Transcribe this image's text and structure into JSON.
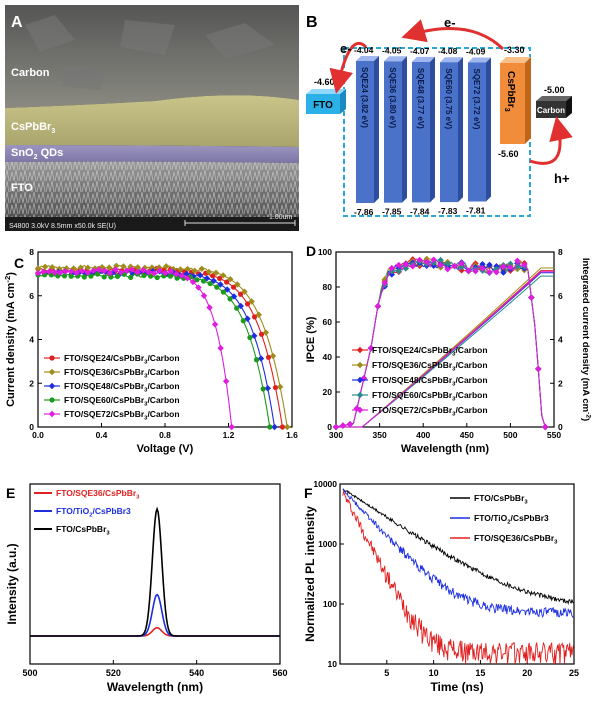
{
  "panelA": {
    "letter": "A",
    "layers": [
      "Carbon",
      "CsPbBr3",
      "SnO2 QDs",
      "FTO"
    ],
    "layer_text": {
      "csp_main": "CsPbBr",
      "csp_sub": "3",
      "sno_main": "SnO",
      "sno_sub": "2",
      "sno_tail": " QDs"
    },
    "scale_text": "S4800 3.0kV 8.5mm x50.0k SE(U)",
    "scale_bar": "1.00um"
  },
  "panelB": {
    "letter": "B",
    "fto": {
      "label": "FTO",
      "level": "-4.60"
    },
    "sqes": [
      {
        "label": "SQE24 (3.82 eV)",
        "top": "-4.04",
        "bottom": "-7.86"
      },
      {
        "label": "SQE36 (3.80 eV)",
        "top": "-4.05",
        "bottom": "-7.85"
      },
      {
        "label": "SQE48 (3.77 eV)",
        "top": "-4.07",
        "bottom": "-7.84"
      },
      {
        "label": "SQE60 (3.75 eV)",
        "top": "-4.08",
        "bottom": "-7.83"
      },
      {
        "label": "SQE72 (3.72 eV)",
        "top": "-4.09",
        "bottom": "-7.81"
      }
    ],
    "cspbbr3": {
      "label": "CsPbBr3",
      "main": "CsPbBr",
      "sub": "3",
      "top": "-3.30",
      "bottom": "-5.60"
    },
    "carbon": {
      "label": "Carbon",
      "level": "-5.00"
    },
    "electron1": "e-",
    "electron2": "e-",
    "hole": "h+",
    "colors": {
      "fto": "#2bb0e8",
      "sqe": "#4a72c8",
      "csp": "#f08c3a",
      "carbon": "#333333",
      "dash": "#2aa8d8",
      "arrow": "#e03030"
    }
  },
  "chart_data": [
    {
      "panel": "C",
      "type": "line",
      "xlabel": "Voltage (V)",
      "ylabel": "Current density (mA cm-2)",
      "xlim": [
        0.0,
        1.6
      ],
      "ylim": [
        0,
        8
      ],
      "xticks": [
        "0.0",
        "0.4",
        "0.8",
        "1.2",
        "1.6"
      ],
      "yticks": [
        "0",
        "2",
        "4",
        "6",
        "8"
      ],
      "legend_location": "bottom-left",
      "series": [
        {
          "name": "FTO/SQE24/CsPbBr3/Carbon",
          "color": "#e02020",
          "jsc": 7.16,
          "voc": 1.54,
          "n": 10.0
        },
        {
          "name": "FTO/SQE36/CsPbBr3/Carbon",
          "color": "#a08c1c",
          "jsc": 7.3,
          "voc": 1.57,
          "n": 10.0
        },
        {
          "name": "FTO/SQE48/CsPbBr3/Carbon",
          "color": "#1c2ee0",
          "jsc": 7.04,
          "voc": 1.49,
          "n": 10.0
        },
        {
          "name": "FTO/SQE60/CsPbBr3/Carbon",
          "color": "#1c9a1c",
          "jsc": 6.91,
          "voc": 1.46,
          "n": 10.0
        },
        {
          "name": "FTO/SQE72/CsPbBr3/Carbon",
          "color": "#e01ce0",
          "jsc": 7.12,
          "voc": 1.22,
          "n": 12.0
        }
      ]
    },
    {
      "panel": "D",
      "type": "line",
      "xlabel": "Wavelength (nm)",
      "ylabel": "IPCE (%)",
      "y2label": "Integrated current density (mA cm-2)",
      "xlim": [
        300,
        550
      ],
      "ylim": [
        0,
        100
      ],
      "y2lim": [
        0,
        8
      ],
      "xticks": [
        "300",
        "350",
        "400",
        "450",
        "500",
        "550"
      ],
      "yticks": [
        "0",
        "20",
        "40",
        "60",
        "80",
        "100"
      ],
      "y2ticks": [
        "0",
        "2",
        "4",
        "6",
        "8"
      ],
      "legend_location": "bottom-center",
      "series": [
        {
          "name": "FTO/SQE24/CsPbBr3/Carbon",
          "color": "#e02020",
          "integrated_end": 7.15
        },
        {
          "name": "FTO/SQE36/CsPbBr3/Carbon",
          "color": "#a08c1c",
          "integrated_end": 7.27
        },
        {
          "name": "FTO/SQE48/CsPbBr3/Carbon",
          "color": "#1c2ee0",
          "integrated_end": 7.05
        },
        {
          "name": "FTO/SQE60/CsPbBr3/Carbon",
          "color": "#2a8a8a",
          "integrated_end": 6.9
        },
        {
          "name": "FTO/SQE72/CsPbBr3/Carbon",
          "color": "#e01ce0",
          "integrated_end": 7.1
        }
      ],
      "ipce_shape": {
        "x": [
          300,
          320,
          340,
          350,
          360,
          380,
          400,
          420,
          440,
          460,
          480,
          500,
          510,
          520,
          530,
          535,
          540
        ],
        "y": [
          0,
          2,
          45,
          75,
          88,
          93,
          94,
          93,
          92,
          91,
          90,
          91,
          93,
          90,
          50,
          8,
          0
        ]
      }
    },
    {
      "panel": "E",
      "type": "line",
      "xlabel": "Wavelength (nm)",
      "ylabel": "Intensity (a.u.)",
      "xlim": [
        500,
        560
      ],
      "xticks": [
        "500",
        "520",
        "540",
        "560"
      ],
      "legend_location": "top-left",
      "series": [
        {
          "name": "FTO/SQE36/CsPbBr3",
          "color": "#e02020",
          "peak": 0.06
        },
        {
          "name": "FTO/TiO2/CsPbBr3",
          "color": "#1c2ee0",
          "peak": 0.3
        },
        {
          "name": "FTO/CsPbBr3",
          "color": "#000000",
          "peak": 0.92
        }
      ],
      "peak_center": 530.5
    },
    {
      "panel": "F",
      "type": "line",
      "xlabel": "Time (ns)",
      "ylabel": "Normalized PL intensity",
      "xlim": [
        0,
        25
      ],
      "ylim": [
        10,
        10000
      ],
      "yscale": "log",
      "xticks": [
        "5",
        "10",
        "15",
        "20",
        "25"
      ],
      "yticks": [
        "10",
        "100",
        "1000",
        "10000"
      ],
      "legend_location": "top-right",
      "series": [
        {
          "name": "FTO/CsPbBr3",
          "color": "#000000",
          "floor": 85,
          "tau": 4.2,
          "noise": 0.03
        },
        {
          "name": "FTO/TiO2/CsPbBr3",
          "color": "#1c2ee0",
          "floor": 72,
          "tau": 2.6,
          "noise": 0.06
        },
        {
          "name": "FTO/SQE36/CsPbBr3",
          "color": "#e02020",
          "floor": 16,
          "tau": 1.45,
          "noise": 0.14
        }
      ]
    }
  ],
  "legend_parts": {
    "C": [
      {
        "a": "FTO/SQE24/CsPbBr",
        "s": "3",
        "b": "/Carbon"
      },
      {
        "a": "FTO/SQE36/CsPbBr",
        "s": "3",
        "b": "/Carbon"
      },
      {
        "a": "FTO/SQE48/CsPbBr",
        "s": "3",
        "b": "/Carbon"
      },
      {
        "a": "FTO/SQE60/CsPbBr",
        "s": "3",
        "b": "/Carbon"
      },
      {
        "a": "FTO/SQE72/CsPbBr",
        "s": "3",
        "b": "/Carbon"
      }
    ],
    "D": [
      {
        "a": "FTO/SQE24/CsPbBr",
        "s": "3",
        "b": "/Carbon"
      },
      {
        "a": "FTO/SQE36/CsPbBr",
        "s": "3",
        "b": "/Carbon"
      },
      {
        "a": "FTO/SQE48/CsPbBr",
        "s": "3",
        "b": "/Carbon"
      },
      {
        "a": "FTO/SQE60/CsPbBr",
        "s": "3",
        "b": "/Carbon"
      },
      {
        "a": "FTO/SQE72/CsPbBr",
        "s": "3",
        "b": "/Carbon"
      }
    ],
    "E": [
      {
        "a": "FTO/SQE36/CsPbBr",
        "s": "3",
        "b": ""
      },
      {
        "a": "FTO/TiO",
        "s": "2",
        "b": "/CsPbBr3"
      },
      {
        "a": "FTO/CsPbBr",
        "s": "3",
        "b": ""
      }
    ],
    "F": [
      {
        "a": "FTO/CsPbBr",
        "s": "3",
        "b": ""
      },
      {
        "a": "FTO/TiO",
        "s": "2",
        "b": "/CsPbBr3"
      },
      {
        "a": "FTO/SQE36/CsPbBr",
        "s": "3",
        "b": ""
      }
    ]
  },
  "axis_parts": {
    "C_ylabel": {
      "a": "Current density (mA cm",
      "s": "-2",
      "b": ")"
    },
    "D_y2label": {
      "a": "Integrated current density (mA cm",
      "s": "-2",
      "b": ")"
    }
  },
  "letters": {
    "C": "C",
    "D": "D",
    "E": "E",
    "F": "F"
  }
}
